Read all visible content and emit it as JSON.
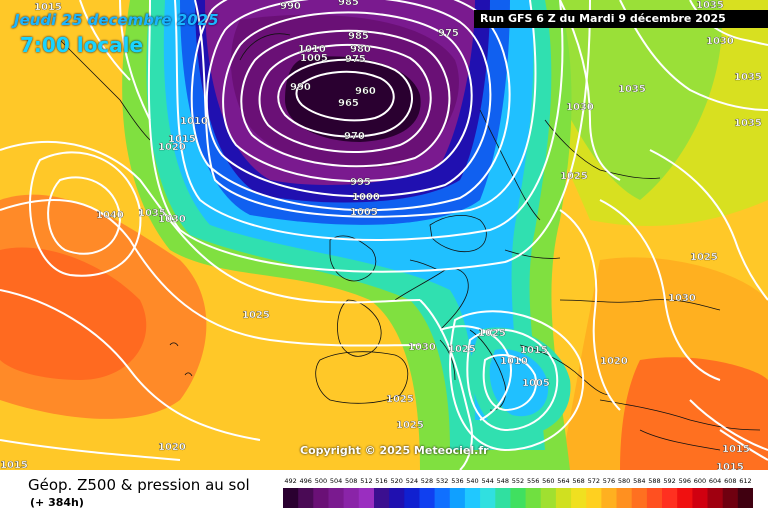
{
  "header": {
    "date": "Jeudi 25 decembre 2025",
    "time": "7:00 locale",
    "run": "Run GFS 6 Z du Mardi 9 décembre 2025"
  },
  "copyright": "Copyright © 2025 Meteociel.fr",
  "legend": {
    "title": "Géop. Z500 & pression au sol",
    "subtitle": "(+ 384h)",
    "scale_values": [
      "492",
      "496",
      "500",
      "504",
      "508",
      "512",
      "516",
      "520",
      "524",
      "528",
      "532",
      "536",
      "540",
      "544",
      "548",
      "552",
      "556",
      "560",
      "564",
      "568",
      "572",
      "576",
      "580",
      "584",
      "588",
      "592",
      "596",
      "600",
      "604",
      "608",
      "612"
    ],
    "scale_colors": [
      "#2a0030",
      "#4a0a55",
      "#6a1076",
      "#7a1a8f",
      "#8a24a8",
      "#9a2ec0",
      "#3b0f90",
      "#2010b0",
      "#1020d0",
      "#1040f0",
      "#1070ff",
      "#10a0ff",
      "#20c8ff",
      "#30e0e0",
      "#30e0a0",
      "#40e060",
      "#70e040",
      "#a0e030",
      "#d0e020",
      "#f0e020",
      "#ffd020",
      "#ffb020",
      "#ff9020",
      "#ff7020",
      "#ff5020",
      "#ff3020",
      "#f01010",
      "#d00010",
      "#a00010",
      "#700010",
      "#400010"
    ]
  },
  "pressure_labels": [
    "1015",
    "990",
    "985",
    "1035",
    "975",
    "1010",
    "1005",
    "985",
    "980",
    "975",
    "960",
    "965",
    "990",
    "1010",
    "1015",
    "1020",
    "970",
    "1030",
    "1035",
    "1025",
    "995",
    "1000",
    "1005",
    "1035",
    "1040",
    "1030",
    "1025",
    "1025",
    "1030",
    "1025",
    "1015",
    "1030",
    "1010",
    "1005",
    "1020",
    "1025",
    "1025",
    "1020",
    "1015",
    "1015",
    "1030",
    "1035",
    "1035",
    "1025",
    "1015"
  ]
}
